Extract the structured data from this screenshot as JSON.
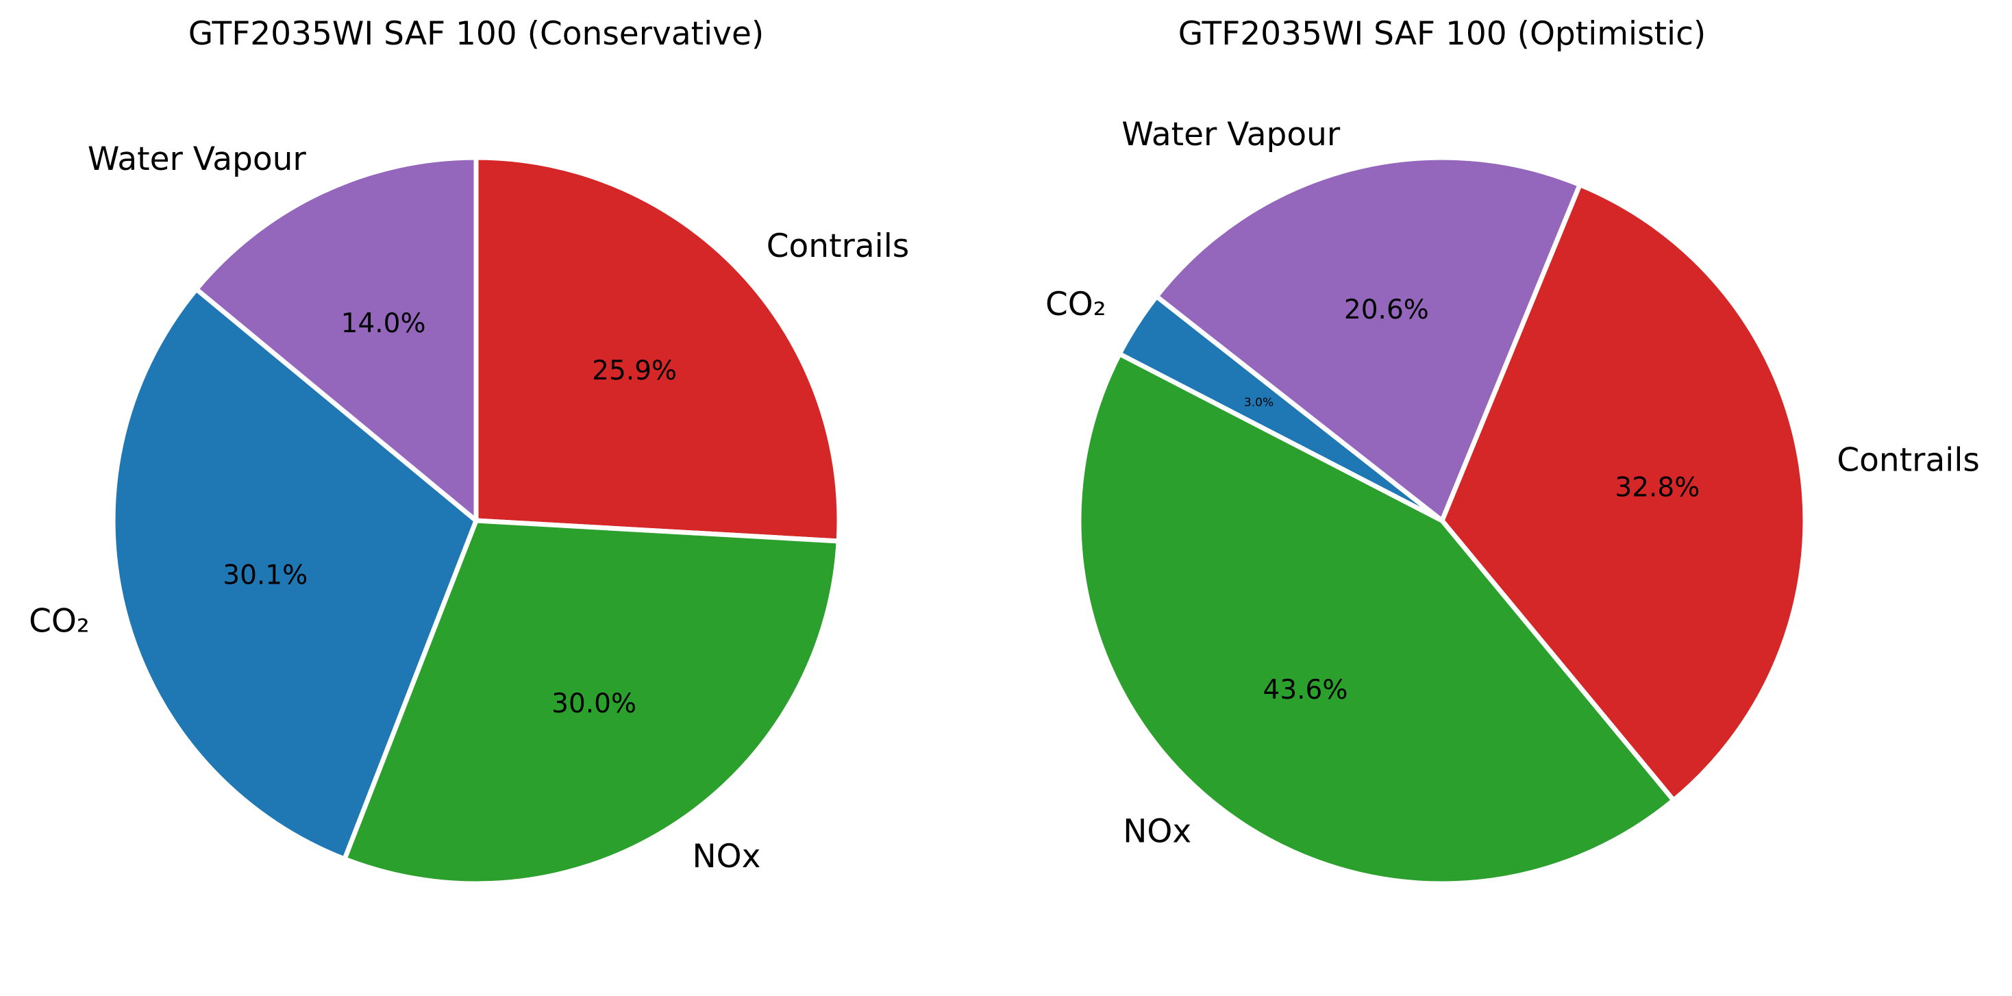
{
  "chart_data": [
    {
      "type": "pie",
      "title": "GTF2035WI SAF 100 (Conservative)",
      "categories": [
        "Contrails",
        "NOx",
        "CO₂",
        "Water Vapour"
      ],
      "values": [
        25.9,
        30.0,
        30.1,
        14.0
      ],
      "value_labels": [
        "25.9%",
        "30.0%",
        "30.1%",
        "14.0%"
      ],
      "colors": [
        "#d62728",
        "#2ca02c",
        "#1f77b4",
        "#9467bd"
      ],
      "start_angle_deg": 90,
      "direction": "clockwise",
      "legend": "none"
    },
    {
      "type": "pie",
      "title": "GTF2035WI SAF 100 (Optimistic)",
      "categories": [
        "Contrails",
        "NOx",
        "CO₂",
        "Water Vapour"
      ],
      "values": [
        32.8,
        43.6,
        3.0,
        20.6
      ],
      "value_labels": [
        "32.8%",
        "43.6%",
        "3.0%",
        "20.6%"
      ],
      "colors": [
        "#d62728",
        "#2ca02c",
        "#1f77b4",
        "#9467bd"
      ],
      "start_angle_deg": 67.7,
      "direction": "clockwise",
      "legend": "none"
    }
  ]
}
